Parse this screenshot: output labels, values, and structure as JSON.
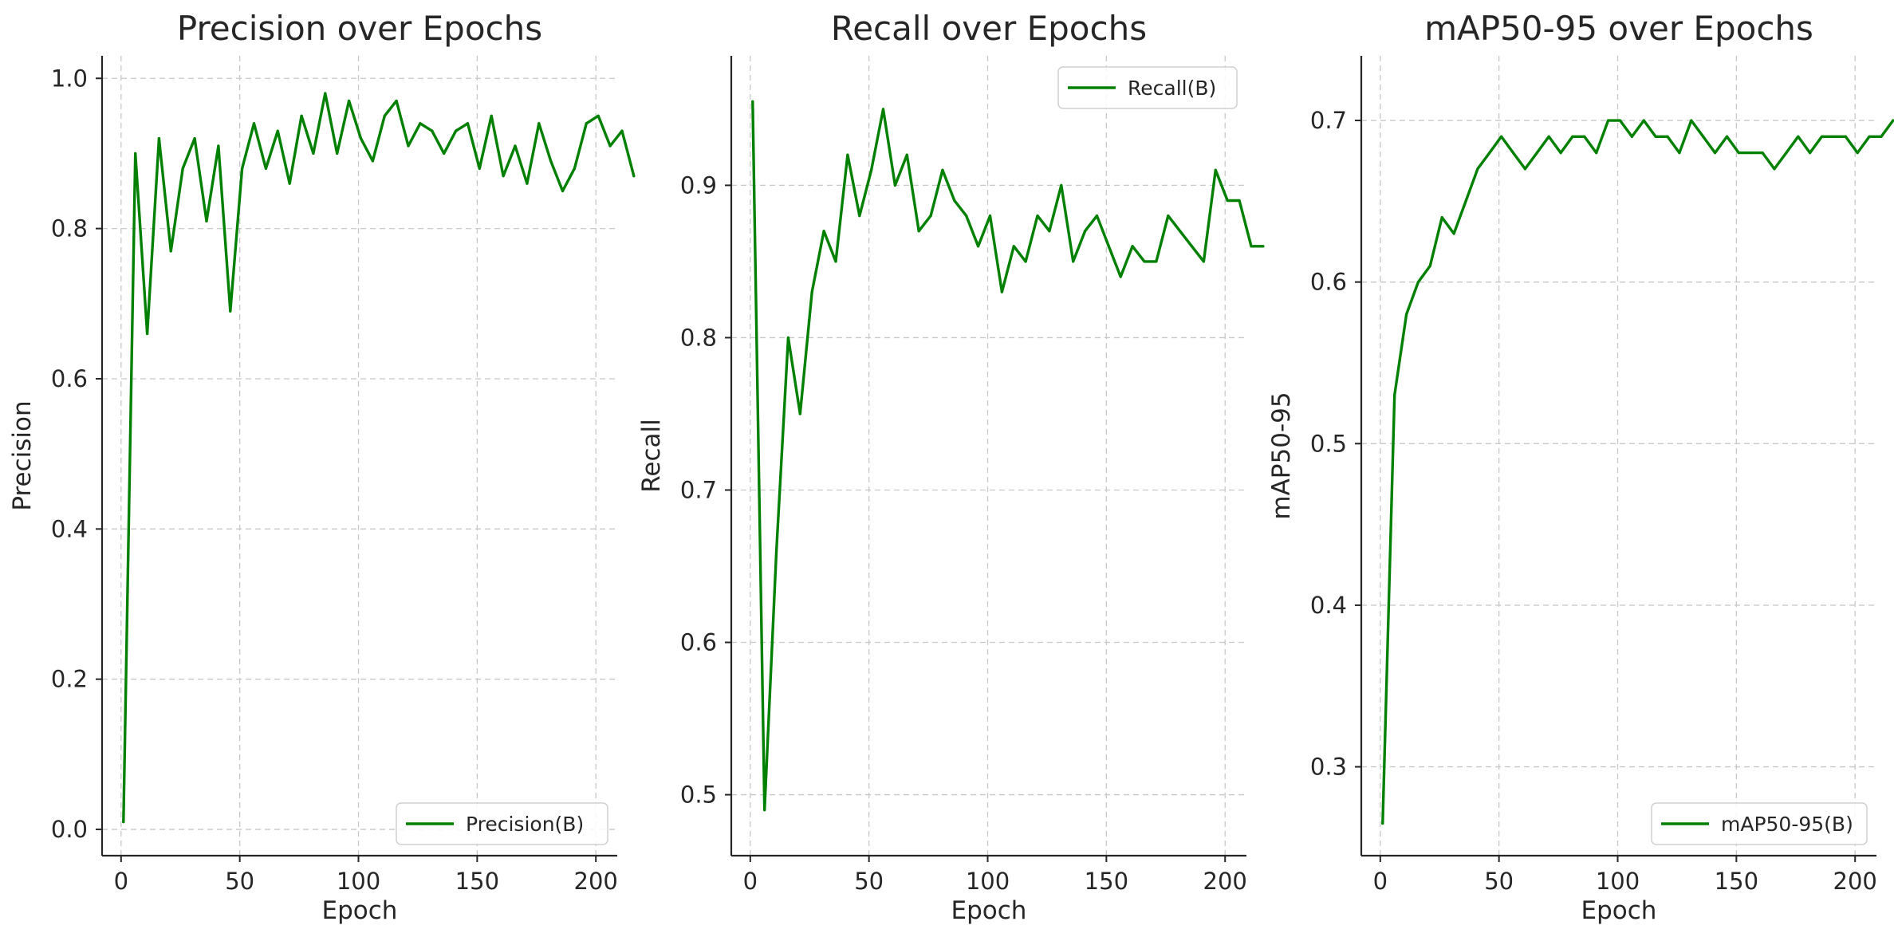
{
  "colors": {
    "series": "#008000"
  },
  "chart_data": [
    {
      "type": "line",
      "title": "Precision over Epochs",
      "xlabel": "Epoch",
      "ylabel": "Precision",
      "xlim": [
        -8,
        209
      ],
      "ylim": [
        -0.035,
        1.03
      ],
      "xticks": [
        0,
        50,
        100,
        150,
        200
      ],
      "xtick_labels": [
        "0",
        "50",
        "100",
        "150",
        "200"
      ],
      "yticks": [
        0.0,
        0.2,
        0.4,
        0.6,
        0.8,
        1.0
      ],
      "ytick_labels": [
        "0.0",
        "0.2",
        "0.4",
        "0.6",
        "0.8",
        "1.0"
      ],
      "grid": true,
      "legend_position": "lower-right",
      "series": [
        {
          "name": "Precision(B)",
          "x_start": 1,
          "x_step": 5,
          "values": [
            0.01,
            0.9,
            0.66,
            0.92,
            0.77,
            0.88,
            0.92,
            0.81,
            0.91,
            0.69,
            0.88,
            0.94,
            0.88,
            0.93,
            0.86,
            0.95,
            0.9,
            0.98,
            0.9,
            0.97,
            0.92,
            0.89,
            0.95,
            0.97,
            0.91,
            0.94,
            0.93,
            0.9,
            0.93,
            0.94,
            0.88,
            0.95,
            0.87,
            0.91,
            0.86,
            0.94,
            0.89,
            0.85,
            0.88,
            0.94,
            0.95,
            0.91,
            0.93,
            0.87
          ]
        }
      ]
    },
    {
      "type": "line",
      "title": "Recall over Epochs",
      "xlabel": "Epoch",
      "ylabel": "Recall",
      "xlim": [
        -8,
        209
      ],
      "ylim": [
        0.46,
        0.985
      ],
      "xticks": [
        0,
        50,
        100,
        150,
        200
      ],
      "xtick_labels": [
        "0",
        "50",
        "100",
        "150",
        "200"
      ],
      "yticks": [
        0.5,
        0.6,
        0.7,
        0.8,
        0.9
      ],
      "ytick_labels": [
        "0.5",
        "0.6",
        "0.7",
        "0.8",
        "0.9"
      ],
      "grid": true,
      "legend_position": "top-right",
      "series": [
        {
          "name": "Recall(B)",
          "x_start": 1,
          "x_step": 5,
          "values": [
            0.955,
            0.49,
            0.66,
            0.8,
            0.75,
            0.83,
            0.87,
            0.85,
            0.92,
            0.88,
            0.91,
            0.95,
            0.9,
            0.92,
            0.87,
            0.88,
            0.91,
            0.89,
            0.88,
            0.86,
            0.88,
            0.83,
            0.86,
            0.85,
            0.88,
            0.87,
            0.9,
            0.85,
            0.87,
            0.88,
            0.86,
            0.84,
            0.86,
            0.85,
            0.85,
            0.88,
            0.87,
            0.86,
            0.85,
            0.91,
            0.89,
            0.89,
            0.86,
            0.86
          ]
        }
      ]
    },
    {
      "type": "line",
      "title": "mAP50-95 over Epochs",
      "xlabel": "Epoch",
      "ylabel": "mAP50-95",
      "xlim": [
        -8,
        209
      ],
      "ylim": [
        0.245,
        0.74
      ],
      "xticks": [
        0,
        50,
        100,
        150,
        200
      ],
      "xtick_labels": [
        "0",
        "50",
        "100",
        "150",
        "200"
      ],
      "yticks": [
        0.3,
        0.4,
        0.5,
        0.6,
        0.7
      ],
      "ytick_labels": [
        "0.3",
        "0.4",
        "0.5",
        "0.6",
        "0.7"
      ],
      "grid": true,
      "legend_position": "lower-right",
      "series": [
        {
          "name": "mAP50-95(B)",
          "x_start": 1,
          "x_step": 5,
          "values": [
            0.265,
            0.53,
            0.58,
            0.6,
            0.61,
            0.64,
            0.63,
            0.65,
            0.67,
            0.68,
            0.69,
            0.68,
            0.67,
            0.68,
            0.69,
            0.68,
            0.69,
            0.69,
            0.68,
            0.7,
            0.7,
            0.69,
            0.7,
            0.69,
            0.69,
            0.68,
            0.7,
            0.69,
            0.68,
            0.69,
            0.68,
            0.68,
            0.68,
            0.67,
            0.68,
            0.69,
            0.68,
            0.69,
            0.69,
            0.69,
            0.68,
            0.69,
            0.69,
            0.7
          ]
        }
      ]
    }
  ]
}
